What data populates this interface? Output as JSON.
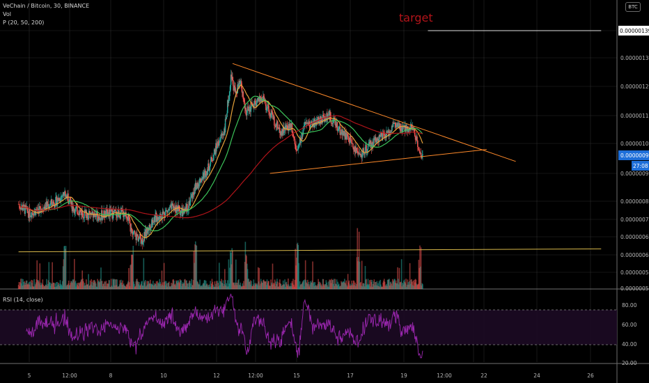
{
  "legend": {
    "symbol": "VeChain / Bitcoin, 30, BINANCE",
    "vol": "Vol",
    "ma": "P (20, 50, 200)",
    "rsi": "RSI (14, close)"
  },
  "badge": "BTC",
  "annotation": "target",
  "colors": {
    "background": "#000000",
    "grid": "#2a2a2a",
    "up": "#26a69a",
    "down": "#ef5350",
    "ma20": "#e8a33a",
    "ma50": "#3cc45a",
    "ma200": "#b0141a",
    "trend": "#ff8a2a",
    "support": "#d8b84a",
    "rsi": "#9c27b0",
    "target": "#b3141a",
    "current_price_bg": "#1e6fd9"
  },
  "price_axis": {
    "ticks": [
      "0.00000139",
      "0.00000130",
      "0.00000120",
      "0.00000110",
      "0.00000100",
      "0.00000096",
      "0.00000090",
      "0.00000080",
      "0.00000074",
      "0.00000068",
      "0.00000062",
      "0.00000056",
      "0.00000050"
    ],
    "current_price": "0.00000096",
    "countdown": "27:08",
    "target_price": "0.00000139"
  },
  "rsi_axis": {
    "ticks": [
      "80.00",
      "60.00",
      "40.00",
      "20.00"
    ]
  },
  "time_axis": {
    "labels": [
      "5",
      "12:00",
      "8",
      "10",
      "12",
      "12:00",
      "15",
      "17",
      "19",
      "12:00",
      "22",
      "24",
      "26"
    ]
  },
  "chart_data": {
    "type": "candlestick",
    "title": "VeChain / Bitcoin, 30, BINANCE",
    "indicators": [
      "Vol",
      "P (20, 50, 200)",
      "RSI (14, close)"
    ],
    "ylim": [
      5e-07,
      1.43e-06
    ],
    "x_range_days": [
      4.6,
      26.4
    ],
    "price_path": [
      [
        4.6,
        7.9e-07
      ],
      [
        5.0,
        7.6e-07
      ],
      [
        5.5,
        7.8e-07
      ],
      [
        6.0,
        8e-07
      ],
      [
        6.3,
        8.3e-07
      ],
      [
        6.6,
        7.8e-07
      ],
      [
        7.0,
        7.6e-07
      ],
      [
        7.5,
        7.5e-07
      ],
      [
        8.0,
        7.6e-07
      ],
      [
        8.6,
        7.6e-07
      ],
      [
        8.8,
        6.9e-07
      ],
      [
        9.2,
        6.7e-07
      ],
      [
        9.6,
        7.4e-07
      ],
      [
        10.0,
        7.6e-07
      ],
      [
        10.4,
        7.8e-07
      ],
      [
        10.8,
        7.6e-07
      ],
      [
        11.2,
        8.5e-07
      ],
      [
        11.7,
        9.2e-07
      ],
      [
        12.0,
        9.9e-07
      ],
      [
        12.3,
        1.05e-06
      ],
      [
        12.55,
        1.24e-06
      ],
      [
        12.7,
        1.18e-06
      ],
      [
        12.9,
        1.21e-06
      ],
      [
        13.1,
        1.11e-06
      ],
      [
        13.4,
        1.14e-06
      ],
      [
        13.7,
        1.16e-06
      ],
      [
        14.0,
        1.11e-06
      ],
      [
        14.4,
        1.04e-06
      ],
      [
        14.8,
        1.07e-06
      ],
      [
        15.0,
        9.7e-07
      ],
      [
        15.3,
        1.06e-06
      ],
      [
        15.8,
        1.08e-06
      ],
      [
        16.2,
        1.1e-06
      ],
      [
        16.6,
        1.05e-06
      ],
      [
        17.0,
        1.01e-06
      ],
      [
        17.3,
        9.6e-07
      ],
      [
        17.6,
        9.8e-07
      ],
      [
        18.0,
        1.02e-06
      ],
      [
        18.4,
        1.03e-06
      ],
      [
        18.6,
        1.07e-06
      ],
      [
        18.9,
        1.05e-06
      ],
      [
        19.3,
        1.06e-06
      ],
      [
        19.6,
        9.8e-07
      ],
      [
        19.7,
        9.6e-07
      ]
    ],
    "volume_spikes_days": [
      6.3,
      8.8,
      11.2,
      12.55,
      13.1,
      15.0,
      17.3,
      19.6
    ],
    "moving_averages": [
      {
        "name": "MA20",
        "period": 20
      },
      {
        "name": "MA50",
        "period": 50
      },
      {
        "name": "MA200",
        "period": 200
      }
    ],
    "trendlines": [
      {
        "name": "resistance",
        "from": [
          12.6,
          1.28e-06
        ],
        "to": [
          23.2,
          9.4e-07
        ]
      },
      {
        "name": "support",
        "from": [
          14.0,
          9e-07
        ],
        "to": [
          22.1,
          9.8e-07
        ]
      },
      {
        "name": "horizontal",
        "from": [
          4.6,
          6.3e-07
        ],
        "to": [
          26.4,
          6.4e-07
        ]
      },
      {
        "name": "target-line",
        "from": [
          19.9,
          1.39e-06
        ],
        "to": [
          26.4,
          1.39e-06
        ]
      }
    ],
    "rsi_range": [
      10,
      90
    ],
    "rsi_bands": [
      70,
      30
    ]
  }
}
